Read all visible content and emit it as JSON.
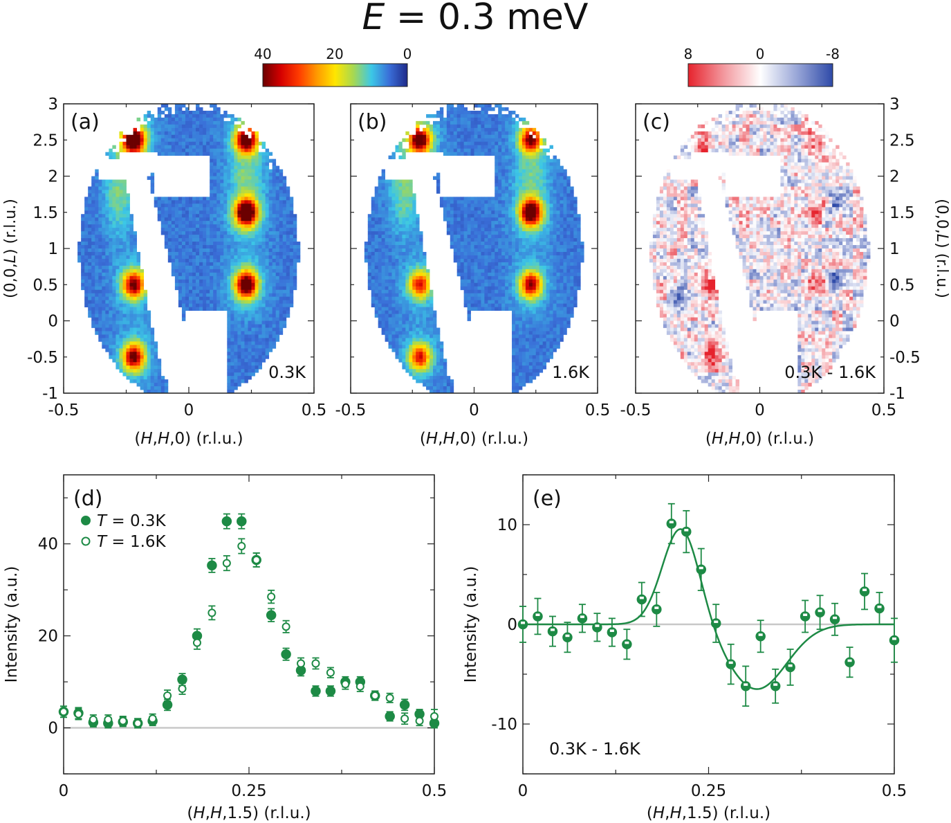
{
  "title": {
    "prefix": "E",
    "rest": " = 0.3 meV"
  },
  "colorbars": {
    "intensity": {
      "ticks": [
        "40",
        "20",
        "0"
      ],
      "stops": [
        "#6b0000",
        "#d50000",
        "#ff3c00",
        "#ff9a00",
        "#ffe600",
        "#a8d850",
        "#3cc8e6",
        "#3a6ed8",
        "#1e2a8a"
      ]
    },
    "difference": {
      "ticks": [
        "8",
        "0",
        "-8"
      ],
      "stops": [
        "#e6232d",
        "#f39aa0",
        "#ffffff",
        "#9aa7d8",
        "#2e4aa8"
      ]
    }
  },
  "colors": {
    "green": "#1d8a45",
    "map_bg": "#2a4aa8",
    "zero_line": "#c8c8c8"
  },
  "chart_data": [
    {
      "type": "heatmap",
      "panel": "(a)",
      "label": "0.3K",
      "xlabel": {
        "h1": "(",
        "i1": "H",
        "s1": ",",
        "i2": "H",
        "s2": ",0) (r.l.u.)"
      },
      "ylabel": {
        "pre": "(0,0,",
        "it": "L",
        "post": ") (r.l.u.)"
      },
      "xlim": [
        -0.5,
        0.5
      ],
      "ylim": [
        -1,
        3
      ],
      "xticks": [
        "-0.5",
        "0",
        "0.5"
      ],
      "yticks": [
        "-1",
        "-0.5",
        "0",
        "0.5",
        "1",
        "1.5",
        "2",
        "2.5",
        "3"
      ],
      "peaks": [
        {
          "h": -0.22,
          "l": 2.5,
          "i": 40
        },
        {
          "h": 0.23,
          "l": 2.5,
          "i": 36
        },
        {
          "h": 0.23,
          "l": 1.5,
          "i": 42
        },
        {
          "h": -0.22,
          "l": 0.5,
          "i": 30
        },
        {
          "h": 0.23,
          "l": 0.5,
          "i": 36
        },
        {
          "h": -0.22,
          "l": -0.5,
          "i": 30
        }
      ]
    },
    {
      "type": "heatmap",
      "panel": "(b)",
      "label": "1.6K",
      "xlabel": {
        "h1": "(",
        "i1": "H",
        "s1": ",",
        "i2": "H",
        "s2": ",0) (r.l.u.)"
      },
      "xlim": [
        -0.5,
        0.5
      ],
      "ylim": [
        -1,
        3
      ],
      "xticks": [
        "-0.5",
        "0",
        "0.5"
      ],
      "peaks": [
        {
          "h": -0.22,
          "l": 2.5,
          "i": 34
        },
        {
          "h": 0.23,
          "l": 2.5,
          "i": 30
        },
        {
          "h": 0.23,
          "l": 1.5,
          "i": 38
        },
        {
          "h": -0.22,
          "l": 0.5,
          "i": 24
        },
        {
          "h": 0.23,
          "l": 0.5,
          "i": 28
        },
        {
          "h": -0.22,
          "l": -0.5,
          "i": 24
        }
      ]
    },
    {
      "type": "heatmap",
      "panel": "(c)",
      "label": "0.3K - 1.6K",
      "xlabel": {
        "h1": "(",
        "i1": "H",
        "s1": ",",
        "i2": "H",
        "s2": ",0) (r.l.u.)"
      },
      "ylabel": {
        "pre": "(0,0,",
        "it": "L",
        "post": ") (r.l.u.)"
      },
      "xlim": [
        -0.5,
        0.5
      ],
      "ylim": [
        -1,
        3
      ],
      "xticks": [
        "-0.5",
        "0",
        "0.5"
      ],
      "yticks": [
        "-1",
        "-0.5",
        "0",
        "0.5",
        "1",
        "1.5",
        "2",
        "2.5",
        "3"
      ],
      "peaks": [
        {
          "h": -0.22,
          "l": 2.45,
          "i": 8
        },
        {
          "h": 0.23,
          "l": 2.5,
          "i": 8
        },
        {
          "h": 0.23,
          "l": 1.5,
          "i": 8
        },
        {
          "h": -0.2,
          "l": 0.5,
          "i": 8
        },
        {
          "h": 0.23,
          "l": 0.5,
          "i": 8
        },
        {
          "h": -0.2,
          "l": -0.45,
          "i": 8
        },
        {
          "h": 0.3,
          "l": 0.5,
          "i": -6
        },
        {
          "h": 0.3,
          "l": 1.6,
          "i": -5
        },
        {
          "h": -0.32,
          "l": 0.3,
          "i": -5
        }
      ]
    },
    {
      "type": "scatter",
      "panel": "(d)",
      "xlabel": {
        "h1": "(",
        "i1": "H",
        "s1": ",",
        "i2": "H",
        "s2": ",1.5) (r.l.u.)"
      },
      "ylabel": "Intensity (a.u.)",
      "xlim": [
        0,
        0.5
      ],
      "ylim": [
        -10,
        55
      ],
      "xticks": [
        "0",
        "0.25",
        "0.5"
      ],
      "yticks": [
        "0",
        "20",
        "40"
      ],
      "legend": [
        {
          "it": "T",
          "rest": " = 0.3K",
          "marker": "filled"
        },
        {
          "it": "T",
          "rest": " = 1.6K",
          "marker": "open"
        }
      ],
      "series": [
        {
          "name": "T = 0.3K",
          "marker": "filled",
          "x": [
            0,
            0.02,
            0.04,
            0.06,
            0.08,
            0.1,
            0.12,
            0.14,
            0.16,
            0.18,
            0.2,
            0.22,
            0.24,
            0.26,
            0.28,
            0.3,
            0.32,
            0.34,
            0.36,
            0.38,
            0.4,
            0.42,
            0.44,
            0.46,
            0.48,
            0.5
          ],
          "y": [
            3.5,
            3.2,
            1.2,
            1.0,
            1.3,
            1.0,
            1.5,
            5.0,
            10.5,
            20.0,
            35.3,
            44.9,
            44.9,
            36.5,
            24.5,
            16.0,
            12.5,
            8.0,
            8.0,
            10.0,
            10.0,
            7.0,
            2.5,
            5.0,
            3.0,
            1.0
          ],
          "err": [
            1.2,
            1.2,
            1.0,
            1.0,
            1.0,
            1.0,
            1.0,
            1.2,
            1.3,
            1.5,
            1.5,
            1.6,
            1.6,
            1.5,
            1.4,
            1.3,
            1.2,
            1.1,
            1.1,
            1.1,
            1.1,
            1.0,
            1.0,
            1.2,
            1.0,
            1.0
          ]
        },
        {
          "name": "T = 1.6K",
          "marker": "open",
          "x": [
            0,
            0.02,
            0.04,
            0.06,
            0.08,
            0.1,
            0.12,
            0.14,
            0.16,
            0.18,
            0.2,
            0.22,
            0.24,
            0.26,
            0.28,
            0.3,
            0.32,
            0.34,
            0.36,
            0.38,
            0.4,
            0.42,
            0.44,
            0.46,
            0.48,
            0.5
          ],
          "y": [
            3.5,
            3.0,
            1.8,
            1.8,
            1.5,
            1.0,
            2.0,
            7.0,
            8.5,
            18.5,
            25.0,
            35.8,
            39.5,
            36.5,
            28.5,
            22.0,
            14.0,
            14.0,
            12.0,
            9.5,
            9.0,
            7.0,
            6.5,
            2.0,
            1.5,
            2.5
          ],
          "err": [
            1.2,
            1.2,
            1.0,
            1.0,
            1.0,
            1.0,
            1.0,
            1.2,
            1.2,
            1.4,
            1.5,
            1.6,
            1.6,
            1.5,
            1.4,
            1.3,
            1.2,
            1.2,
            1.1,
            1.1,
            1.1,
            1.0,
            1.0,
            1.2,
            1.0,
            1.5
          ]
        }
      ]
    },
    {
      "type": "scatter",
      "panel": "(e)",
      "annotation": "0.3K - 1.6K",
      "xlabel": {
        "h1": "(",
        "i1": "H",
        "s1": ",",
        "i2": "H",
        "s2": ",1.5) (r.l.u.)"
      },
      "ylabel": "Intensity (a.u.)",
      "xlim": [
        0,
        0.5
      ],
      "ylim": [
        -15,
        15
      ],
      "xticks": [
        "0",
        "0.25",
        "0.5"
      ],
      "yticks": [
        "-10",
        "0",
        "10"
      ],
      "series": [
        {
          "name": "0.3K - 1.6K",
          "marker": "half",
          "x": [
            0,
            0.02,
            0.04,
            0.06,
            0.08,
            0.1,
            0.12,
            0.14,
            0.16,
            0.18,
            0.2,
            0.22,
            0.24,
            0.26,
            0.28,
            0.3,
            0.32,
            0.34,
            0.36,
            0.38,
            0.4,
            0.42,
            0.44,
            0.46,
            0.48,
            0.5
          ],
          "y": [
            0.0,
            0.8,
            -0.7,
            -1.3,
            0.6,
            -0.3,
            -0.8,
            -2.0,
            2.5,
            1.5,
            10.1,
            9.3,
            5.5,
            0.1,
            -4.0,
            -6.2,
            -1.2,
            -6.2,
            -4.3,
            0.8,
            1.2,
            0.5,
            -3.8,
            3.3,
            1.6,
            -1.6
          ],
          "err": [
            1.8,
            1.8,
            1.5,
            1.5,
            1.4,
            1.4,
            1.4,
            1.5,
            1.7,
            1.7,
            2.0,
            2.1,
            2.1,
            1.9,
            2.0,
            2.0,
            1.6,
            1.7,
            1.8,
            1.6,
            1.7,
            1.6,
            1.5,
            1.8,
            1.6,
            2.2
          ]
        }
      ],
      "fit": {
        "type": "two-gaussian",
        "components": [
          {
            "amp": 9.8,
            "center": 0.213,
            "sigma": 0.025
          },
          {
            "amp": -6.5,
            "center": 0.315,
            "sigma": 0.04
          }
        ]
      }
    }
  ]
}
